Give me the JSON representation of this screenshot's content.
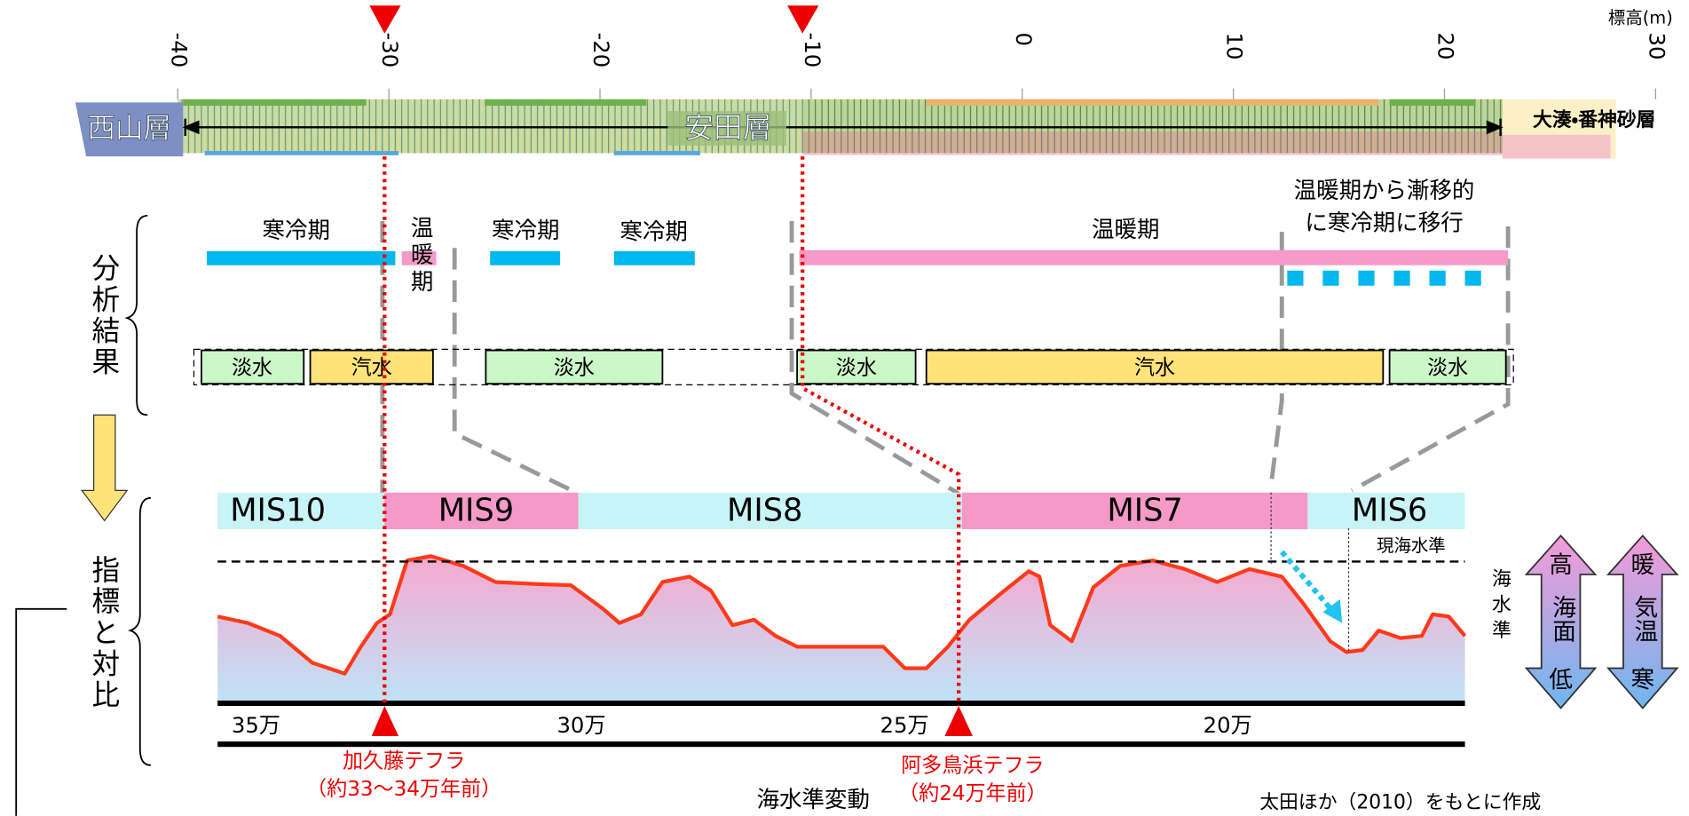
{
  "elevation_axis": {
    "unit_label": "標高(m)",
    "ticks": [
      -40,
      -30,
      -20,
      -10,
      0,
      10,
      20,
      30
    ]
  },
  "strata": {
    "left": "西山層",
    "middle": "安田層",
    "right": "大湊・番神砂層"
  },
  "analysis": {
    "label": "分析結果",
    "climate": [
      "寒冷期",
      "温暖期",
      "寒冷期",
      "寒冷期",
      "温暖期"
    ],
    "transition": [
      "温暖期から漸移的",
      "に寒冷期に移行"
    ],
    "water": [
      "淡水",
      "汽水",
      "淡水",
      "淡水",
      "汽水",
      "淡水"
    ]
  },
  "comparison": {
    "label": "指標と対比",
    "mis": [
      "MIS10",
      "MIS9",
      "MIS8",
      "MIS7",
      "MIS6"
    ],
    "current_sea_level": "現海水準",
    "sea_level_label": "海水準",
    "age_ticks": [
      "35万",
      "30万",
      "25万",
      "20万"
    ],
    "caption": "海水準変動"
  },
  "legend_arrows": [
    {
      "top": "高",
      "middle": "海面",
      "bottom": "低"
    },
    {
      "top": "暖",
      "middle": "気温",
      "bottom": "寒"
    }
  ],
  "tephra": [
    {
      "name": "加久藤テフラ",
      "age": "（約33～34万年前）"
    },
    {
      "name": "阿多鳥浜テフラ",
      "age": "（約24万年前）"
    }
  ],
  "credit": "太田ほか（2010）をもとに作成"
}
